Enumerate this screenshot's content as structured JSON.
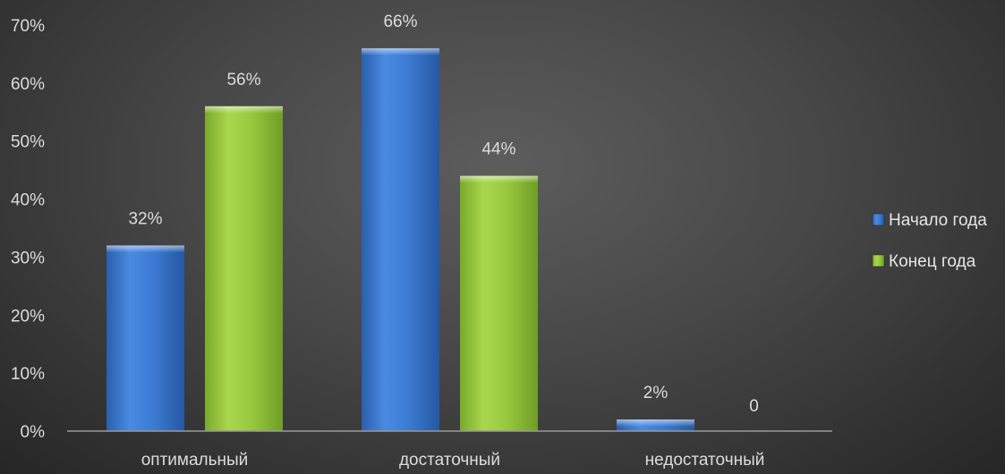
{
  "chart_data": {
    "type": "bar",
    "title": "",
    "xlabel": "",
    "ylabel": "",
    "categories": [
      "оптимальный",
      "достаточный",
      "недостаточный"
    ],
    "series": [
      {
        "name": "Начало года",
        "values": [
          32,
          66,
          2
        ],
        "labels": [
          "32%",
          "66%",
          "2%"
        ],
        "color": "#3a7bd5"
      },
      {
        "name": "Конец года",
        "values": [
          56,
          44,
          0
        ],
        "labels": [
          "56%",
          "44%",
          "0"
        ],
        "color": "#96c93d"
      }
    ],
    "ylim": [
      0,
      70
    ],
    "yticks": [
      0,
      10,
      20,
      30,
      40,
      50,
      60,
      70
    ],
    "ytick_labels": [
      "0%",
      "10%",
      "20%",
      "30%",
      "40%",
      "50%",
      "60%",
      "70%"
    ],
    "grid": false,
    "legend_position": "right"
  }
}
